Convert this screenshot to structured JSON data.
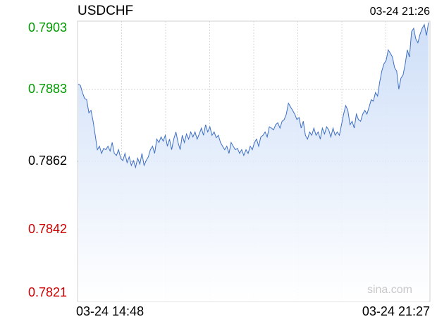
{
  "chart_data": {
    "type": "line",
    "title": "USDCHF",
    "last_update": "03-24 21:26",
    "watermark": "sina.com",
    "x_labels": [
      "03-24 14:48",
      "03-24 21:27"
    ],
    "ylim": [
      0.7821,
      0.7903
    ],
    "yticks": [
      0.7821,
      0.7842,
      0.7862,
      0.7883,
      0.7903
    ],
    "reference": 0.7862,
    "up_color": "#009900",
    "down_color": "#cc0000",
    "flat_color": "#000000",
    "grid": true,
    "series": [
      {
        "name": "USDCHF",
        "color": "#3e6fc4",
        "values": [
          0.78846,
          0.78842,
          0.78821,
          0.78804,
          0.788,
          0.78762,
          0.78769,
          0.78737,
          0.78696,
          0.78654,
          0.78664,
          0.78643,
          0.78658,
          0.78654,
          0.78664,
          0.7865,
          0.78675,
          0.78643,
          0.78637,
          0.78654,
          0.78629,
          0.78622,
          0.78643,
          0.78616,
          0.78633,
          0.78608,
          0.78622,
          0.78602,
          0.78629,
          0.78612,
          0.78643,
          0.78608,
          0.78622,
          0.78633,
          0.78654,
          0.78664,
          0.78643,
          0.78685,
          0.78675,
          0.78691,
          0.78679,
          0.78696,
          0.78664,
          0.78685,
          0.78654,
          0.78685,
          0.78706,
          0.78675,
          0.78654,
          0.78696,
          0.78675,
          0.787,
          0.78685,
          0.78706,
          0.78691,
          0.78706,
          0.78685,
          0.787,
          0.78717,
          0.78696,
          0.78727,
          0.78706,
          0.78721,
          0.78696,
          0.78706,
          0.78689,
          0.78696,
          0.78675,
          0.78664,
          0.78654,
          0.78664,
          0.78643,
          0.78675,
          0.78664,
          0.78654,
          0.78658,
          0.78643,
          0.78654,
          0.78637,
          0.78654,
          0.78643,
          0.78664,
          0.78654,
          0.78675,
          0.78685,
          0.78664,
          0.78691,
          0.78696,
          0.78706,
          0.78691,
          0.78721,
          0.78717,
          0.78712,
          0.78727,
          0.78733,
          0.78717,
          0.78737,
          0.78742,
          0.78758,
          0.7879,
          0.78779,
          0.78769,
          0.78758,
          0.78742,
          0.78748,
          0.78717,
          0.78737,
          0.78696,
          0.78685,
          0.78706,
          0.78696,
          0.78717,
          0.78696,
          0.78706,
          0.78685,
          0.78717,
          0.787,
          0.78721,
          0.78712,
          0.78691,
          0.78717,
          0.78696,
          0.78706,
          0.78696,
          0.78727,
          0.78758,
          0.78783,
          0.78769,
          0.78727,
          0.78737,
          0.78717,
          0.78758,
          0.78742,
          0.78737,
          0.78758,
          0.78769,
          0.78758,
          0.78779,
          0.788,
          0.78796,
          0.78821,
          0.78811,
          0.78852,
          0.78884,
          0.78905,
          0.78915,
          0.78946,
          0.78936,
          0.78925,
          0.78894,
          0.78884,
          0.78831,
          0.78863,
          0.78873,
          0.78905,
          0.78946,
          0.78925,
          0.78999,
          0.79009,
          0.78978,
          0.78967,
          0.78992,
          0.79009,
          0.7902,
          0.78988,
          0.79026
        ]
      }
    ]
  }
}
